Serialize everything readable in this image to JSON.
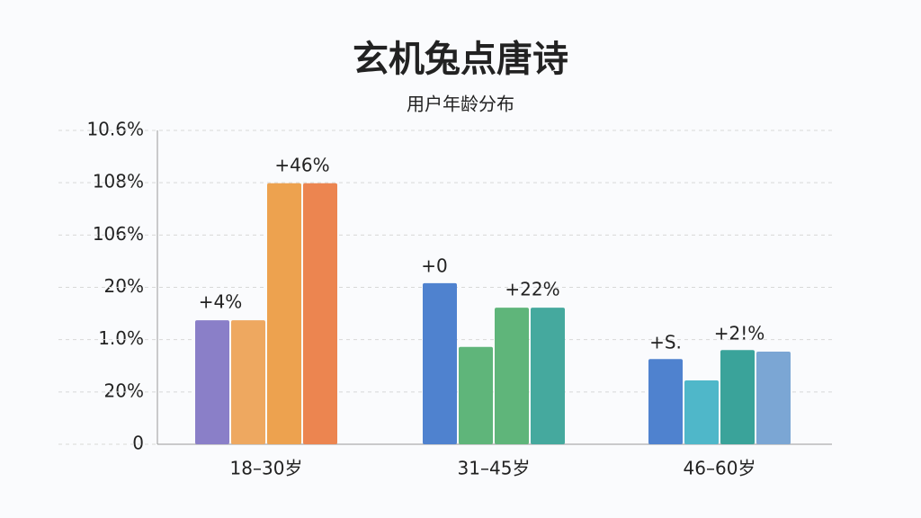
{
  "chart_data": {
    "type": "bar",
    "title": "玄机兔点唐诗",
    "subtitle": "用户年龄分布",
    "categories": [
      "18–30岁",
      "31–45岁",
      "46–60岁"
    ],
    "series": [
      {
        "colors": [
          "#8a7fc8",
          "#4f82cf",
          "#4f82cf"
        ],
        "values": [
          2.37,
          3.08,
          1.63
        ]
      },
      {
        "colors": [
          "#eea860",
          "#5fb57a",
          "#4fb7c9"
        ],
        "values": [
          2.37,
          1.86,
          1.22
        ]
      },
      {
        "colors": [
          "#eda24f",
          "#5fb57a",
          "#3aa39a"
        ],
        "values": [
          4.99,
          2.61,
          1.8
        ]
      },
      {
        "colors": [
          "#ec8550",
          "#45a99e",
          "#7ba6d4"
        ],
        "values": [
          4.99,
          2.61,
          1.77
        ]
      }
    ],
    "ylim": [
      0,
      6
    ],
    "yticks": [
      {
        "value": 0,
        "label": "0"
      },
      {
        "value": 1,
        "label": "20%"
      },
      {
        "value": 2,
        "label": "1.0%"
      },
      {
        "value": 3,
        "label": "20%"
      },
      {
        "value": 4,
        "label": "106%"
      },
      {
        "value": 5,
        "label": "108%"
      },
      {
        "value": 6,
        "label": "10.6%"
      }
    ],
    "grid": true,
    "annotations": [
      "+46%",
      "+4%",
      "+0",
      "+22%",
      "+S.",
      "+2!%"
    ]
  }
}
